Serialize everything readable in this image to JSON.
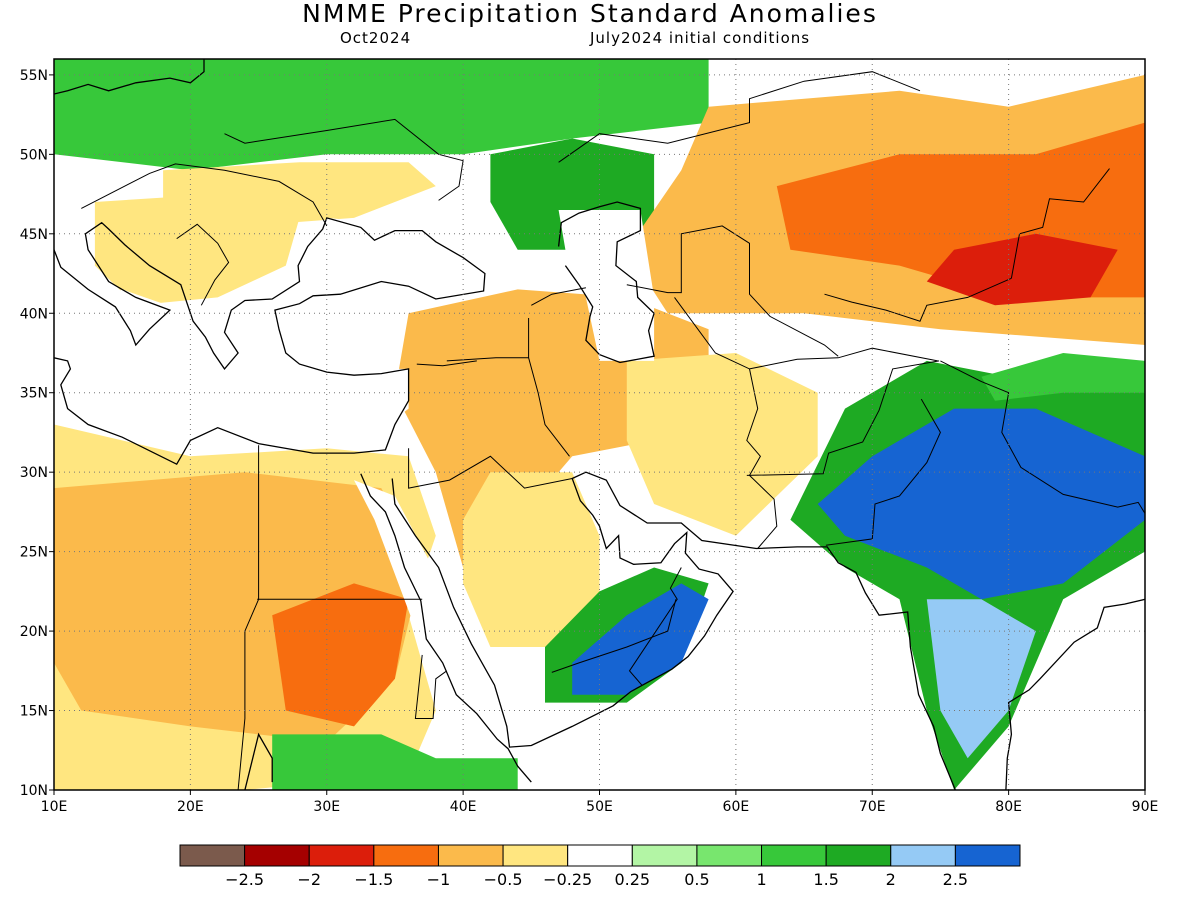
{
  "title": "NMME Precipitation Standard Anomalies",
  "subtitle_left": "Oct2024",
  "subtitle_right": "July2024 initial conditions",
  "map": {
    "lon_range": [
      10,
      90
    ],
    "lat_range": [
      10,
      56
    ],
    "lon_ticks": [
      {
        "value": 10,
        "label": "10E"
      },
      {
        "value": 20,
        "label": "20E"
      },
      {
        "value": 30,
        "label": "30E"
      },
      {
        "value": 40,
        "label": "40E"
      },
      {
        "value": 50,
        "label": "50E"
      },
      {
        "value": 60,
        "label": "60E"
      },
      {
        "value": 70,
        "label": "70E"
      },
      {
        "value": 80,
        "label": "80E"
      },
      {
        "value": 90,
        "label": "90E"
      }
    ],
    "lat_ticks": [
      {
        "value": 10,
        "label": "10N"
      },
      {
        "value": 15,
        "label": "15N"
      },
      {
        "value": 20,
        "label": "20N"
      },
      {
        "value": 25,
        "label": "25N"
      },
      {
        "value": 30,
        "label": "30N"
      },
      {
        "value": 35,
        "label": "35N"
      },
      {
        "value": 40,
        "label": "40N"
      },
      {
        "value": 45,
        "label": "45N"
      },
      {
        "value": 50,
        "label": "50N"
      },
      {
        "value": 55,
        "label": "55N"
      }
    ],
    "grid": true
  },
  "legend": {
    "colors": [
      "#7b5a4c",
      "#a50000",
      "#dc1e0b",
      "#f76d0f",
      "#fbba4b",
      "#ffe680",
      "#ffffff",
      "#b3f5a5",
      "#78e66e",
      "#37c83a",
      "#1eaa23",
      "#95caf5",
      "#1664d2"
    ],
    "labels": [
      "−2.5",
      "−2",
      "−1.5",
      "−1",
      "−0.5",
      "−0.25",
      "0.25",
      "0.5",
      "1",
      "1.5",
      "2",
      "2.5"
    ]
  },
  "regions": [
    {
      "name": "northern-europe-wet",
      "value": 1.0,
      "points": [
        [
          10,
          56
        ],
        [
          58,
          56
        ],
        [
          58,
          52
        ],
        [
          48,
          51
        ],
        [
          40,
          50
        ],
        [
          30,
          50
        ],
        [
          20,
          49
        ],
        [
          10,
          50
        ]
      ]
    },
    {
      "name": "ukraine-dry",
      "value": -0.5,
      "points": [
        [
          18,
          49
        ],
        [
          28,
          49.5
        ],
        [
          36,
          49.5
        ],
        [
          38,
          48
        ],
        [
          32,
          46
        ],
        [
          24,
          45.5
        ],
        [
          18,
          46
        ]
      ]
    },
    {
      "name": "balkans-dry",
      "value": -0.5,
      "points": [
        [
          13,
          47
        ],
        [
          22,
          47.5
        ],
        [
          28,
          46
        ],
        [
          27,
          43
        ],
        [
          22,
          41
        ],
        [
          16,
          40.5
        ],
        [
          13,
          43
        ]
      ]
    },
    {
      "name": "russia-steppe-wet",
      "value": 1.5,
      "points": [
        [
          42,
          50
        ],
        [
          48,
          51
        ],
        [
          54,
          50
        ],
        [
          54,
          45
        ],
        [
          50,
          44
        ],
        [
          44,
          44
        ],
        [
          42,
          47
        ]
      ]
    },
    {
      "name": "kazakhstan-dry",
      "value": -1.0,
      "points": [
        [
          58,
          53
        ],
        [
          72,
          54
        ],
        [
          80,
          53
        ],
        [
          90,
          55
        ],
        [
          90,
          38
        ],
        [
          75,
          39
        ],
        [
          65,
          40
        ],
        [
          55,
          40
        ],
        [
          52,
          44
        ],
        [
          56,
          49
        ]
      ]
    },
    {
      "name": "kazakhstan-core",
      "value": -1.5,
      "points": [
        [
          63,
          48
        ],
        [
          72,
          50
        ],
        [
          82,
          50
        ],
        [
          90,
          52
        ],
        [
          90,
          41
        ],
        [
          80,
          41
        ],
        [
          72,
          43
        ],
        [
          64,
          44
        ]
      ]
    },
    {
      "name": "tianshan-core",
      "value": -2.0,
      "points": [
        [
          76,
          44
        ],
        [
          82,
          45
        ],
        [
          88,
          44
        ],
        [
          86,
          41
        ],
        [
          79,
          40.5
        ],
        [
          74,
          42
        ]
      ]
    },
    {
      "name": "middle-east-dry",
      "value": -1.0,
      "points": [
        [
          36,
          40
        ],
        [
          44,
          41.5
        ],
        [
          52,
          41
        ],
        [
          58,
          39
        ],
        [
          58,
          34
        ],
        [
          54,
          32
        ],
        [
          48,
          31
        ],
        [
          44,
          27
        ],
        [
          40,
          24
        ],
        [
          38,
          30
        ],
        [
          35,
          35
        ]
      ]
    },
    {
      "name": "iran-afghan-dry",
      "value": -0.5,
      "points": [
        [
          52,
          37
        ],
        [
          60,
          37.5
        ],
        [
          66,
          35
        ],
        [
          66,
          31
        ],
        [
          60,
          26
        ],
        [
          54,
          28
        ],
        [
          52,
          32
        ]
      ]
    },
    {
      "name": "arabia-dry",
      "value": -0.5,
      "points": [
        [
          42,
          30
        ],
        [
          48,
          30
        ],
        [
          50,
          26
        ],
        [
          50,
          22
        ],
        [
          46,
          19
        ],
        [
          42,
          19
        ],
        [
          40,
          23
        ],
        [
          40,
          27
        ]
      ]
    },
    {
      "name": "north-africa-dry",
      "value": -0.5,
      "points": [
        [
          10,
          33
        ],
        [
          20,
          31
        ],
        [
          30,
          31.5
        ],
        [
          36,
          31
        ],
        [
          38,
          26
        ],
        [
          36,
          21
        ],
        [
          38,
          15
        ],
        [
          36,
          11
        ],
        [
          24,
          10
        ],
        [
          10,
          10
        ]
      ]
    },
    {
      "name": "sahel-dry",
      "value": -1.0,
      "points": [
        [
          10,
          29
        ],
        [
          24,
          30
        ],
        [
          34,
          29
        ],
        [
          37,
          24
        ],
        [
          35,
          17
        ],
        [
          30,
          13
        ],
        [
          20,
          14
        ],
        [
          12,
          15
        ],
        [
          10,
          18
        ]
      ]
    },
    {
      "name": "sudan-core",
      "value": -1.5,
      "points": [
        [
          26,
          21
        ],
        [
          32,
          23
        ],
        [
          36,
          22
        ],
        [
          35,
          17
        ],
        [
          32,
          14
        ],
        [
          27,
          15
        ]
      ]
    },
    {
      "name": "horn-wet",
      "value": 1.0,
      "points": [
        [
          26,
          13.5
        ],
        [
          34,
          13.5
        ],
        [
          38,
          12
        ],
        [
          44,
          12
        ],
        [
          45,
          10
        ],
        [
          26,
          10
        ]
      ]
    },
    {
      "name": "oman-yemen-wet",
      "value": 1.5,
      "points": [
        [
          46,
          19
        ],
        [
          50,
          22.5
        ],
        [
          54,
          24
        ],
        [
          58,
          23
        ],
        [
          56,
          18
        ],
        [
          52,
          15.5
        ],
        [
          46,
          15.5
        ]
      ]
    },
    {
      "name": "oman-core",
      "value": 2.5,
      "points": [
        [
          48,
          18
        ],
        [
          52,
          21
        ],
        [
          56,
          23
        ],
        [
          58,
          22
        ],
        [
          56,
          18
        ],
        [
          52,
          16
        ],
        [
          48,
          16
        ]
      ]
    },
    {
      "name": "india-wet",
      "value": 1.5,
      "points": [
        [
          64,
          27
        ],
        [
          68,
          34
        ],
        [
          74,
          37
        ],
        [
          80,
          36
        ],
        [
          90,
          35.5
        ],
        [
          90,
          25
        ],
        [
          84,
          22
        ],
        [
          80,
          14
        ],
        [
          76,
          10
        ],
        [
          74,
          14
        ],
        [
          72,
          20
        ],
        [
          68,
          24
        ]
      ]
    },
    {
      "name": "india-core",
      "value": 2.5,
      "points": [
        [
          66,
          28
        ],
        [
          70,
          31
        ],
        [
          76,
          34
        ],
        [
          82,
          34
        ],
        [
          90,
          31
        ],
        [
          90,
          27
        ],
        [
          84,
          23
        ],
        [
          78,
          22
        ],
        [
          74,
          24
        ],
        [
          68,
          26
        ]
      ]
    },
    {
      "name": "india-south",
      "value": 2.0,
      "points": [
        [
          74,
          22
        ],
        [
          78,
          22
        ],
        [
          82,
          20
        ],
        [
          80,
          15
        ],
        [
          77,
          12
        ],
        [
          75,
          15
        ]
      ]
    },
    {
      "name": "tibet-wet",
      "value": 1.0,
      "points": [
        [
          78,
          36
        ],
        [
          84,
          37.5
        ],
        [
          90,
          37
        ],
        [
          90,
          35
        ],
        [
          84,
          35
        ],
        [
          79,
          34.5
        ]
      ]
    }
  ],
  "blanks": [
    {
      "name": "black-sea",
      "points": [
        [
          27.5,
          41.5
        ],
        [
          30,
          46
        ],
        [
          36,
          45.5
        ],
        [
          41.5,
          41.5
        ],
        [
          36,
          41.2
        ]
      ]
    },
    {
      "name": "caspian-sea",
      "points": [
        [
          47,
          46.5
        ],
        [
          53,
          46.5
        ],
        [
          54,
          41
        ],
        [
          54,
          37
        ],
        [
          50,
          37
        ],
        [
          49,
          41
        ],
        [
          47.5,
          44
        ]
      ]
    },
    {
      "name": "mediterranean",
      "points": [
        [
          10,
          37.5
        ],
        [
          12,
          40
        ],
        [
          15,
          41.5
        ],
        [
          20,
          40
        ],
        [
          24,
          40
        ],
        [
          27,
          38
        ],
        [
          30,
          36.5
        ],
        [
          36,
          36.5
        ],
        [
          36,
          34
        ],
        [
          33,
          32
        ],
        [
          25,
          31.5
        ],
        [
          20,
          31
        ],
        [
          12,
          33
        ],
        [
          10,
          35
        ]
      ]
    },
    {
      "name": "red-sea",
      "points": [
        [
          32,
          29.5
        ],
        [
          35,
          28.5
        ],
        [
          39,
          22
        ],
        [
          42,
          17
        ],
        [
          43.5,
          12.5
        ],
        [
          41.5,
          14.5
        ],
        [
          37,
          19
        ],
        [
          33.5,
          27
        ]
      ]
    },
    {
      "name": "persian-gulf",
      "points": [
        [
          48,
          30
        ],
        [
          50.5,
          29
        ],
        [
          56,
          26.5
        ],
        [
          56,
          24
        ],
        [
          52,
          24
        ],
        [
          50,
          26
        ]
      ]
    },
    {
      "name": "arabian-sea",
      "points": [
        [
          52,
          15
        ],
        [
          58,
          18
        ],
        [
          62,
          25
        ],
        [
          66,
          25
        ],
        [
          72,
          22
        ],
        [
          74,
          15
        ],
        [
          76,
          10
        ],
        [
          44,
          10
        ],
        [
          44,
          12
        ]
      ]
    },
    {
      "name": "bay-of-bengal",
      "points": [
        [
          80.5,
          10
        ],
        [
          82,
          16
        ],
        [
          86,
          20
        ],
        [
          90,
          21.5
        ],
        [
          90,
          10
        ]
      ]
    }
  ]
}
